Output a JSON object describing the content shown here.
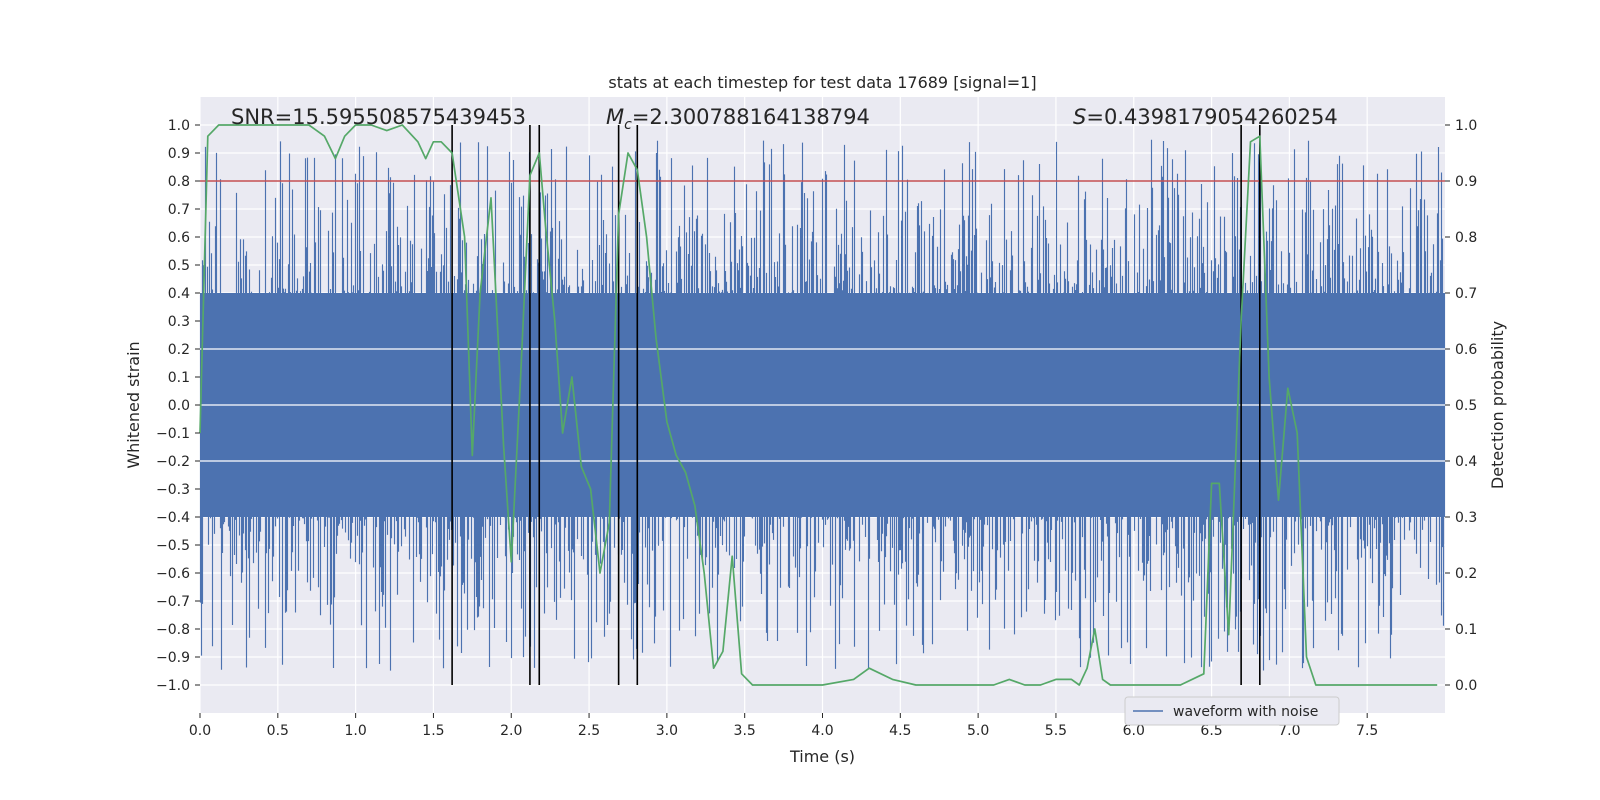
{
  "chart_data": {
    "type": "line",
    "title": "stats at each timestep for test data 17689 [signal=1]",
    "xlabel": "Time (s)",
    "ylabel": "Whitened strain",
    "y2label": "Detection probability",
    "xlim": [
      0.0,
      8.0
    ],
    "ylim": [
      -1.1,
      1.1
    ],
    "y2lim": [
      -0.05,
      1.05
    ],
    "xticks": [
      0.0,
      0.5,
      1.0,
      1.5,
      2.0,
      2.5,
      3.0,
      3.5,
      4.0,
      4.5,
      5.0,
      5.5,
      6.0,
      6.5,
      7.0,
      7.5
    ],
    "xtick_labels": [
      "0.0",
      "0.5",
      "1.0",
      "1.5",
      "2.0",
      "2.5",
      "3.0",
      "3.5",
      "4.0",
      "4.5",
      "5.0",
      "5.5",
      "6.0",
      "6.5",
      "7.0",
      "7.5"
    ],
    "yticks": [
      -1.0,
      -0.9,
      -0.8,
      -0.7,
      -0.6,
      -0.5,
      -0.4,
      -0.3,
      -0.2,
      -0.1,
      0.0,
      0.1,
      0.2,
      0.3,
      0.4,
      0.5,
      0.6,
      0.7,
      0.8,
      0.9,
      1.0
    ],
    "ytick_labels": [
      "−1.0",
      "−0.9",
      "−0.8",
      "−0.7",
      "−0.6",
      "−0.5",
      "−0.4",
      "−0.3",
      "−0.2",
      "−0.1",
      "0.0",
      "0.1",
      "0.2",
      "0.3",
      "0.4",
      "0.5",
      "0.6",
      "0.7",
      "0.8",
      "0.9",
      "1.0"
    ],
    "y2ticks": [
      0.0,
      0.1,
      0.2,
      0.3,
      0.4,
      0.5,
      0.6,
      0.7,
      0.8,
      0.9,
      1.0
    ],
    "y2tick_labels": [
      "0.0",
      "0.1",
      "0.2",
      "0.3",
      "0.4",
      "0.5",
      "0.6",
      "0.7",
      "0.8",
      "0.9",
      "1.0"
    ],
    "annotations": {
      "snr": "SNR=15.595508575439453",
      "mc_symbol": "M",
      "mc_subscript": "c",
      "mc_value": "=2.300788164138794",
      "s_symbol": "S",
      "s_value": "=0.4398179054260254"
    },
    "threshold": {
      "value": 0.9,
      "color": "#c44e52",
      "axis": "right"
    },
    "vertical_lines": [
      1.62,
      2.12,
      2.18,
      2.69,
      2.81,
      6.69,
      6.81
    ],
    "waveform": {
      "name": "waveform with noise",
      "color": "#4c72b0",
      "duration": 8.0,
      "envelope_core": 0.4,
      "peak_max": 1.0,
      "peak_min": -1.0
    },
    "probability": {
      "color": "#55a868",
      "x": [
        0.0,
        0.05,
        0.12,
        0.2,
        0.3,
        0.4,
        0.5,
        0.6,
        0.7,
        0.8,
        0.87,
        0.93,
        1.0,
        1.1,
        1.2,
        1.3,
        1.4,
        1.45,
        1.5,
        1.55,
        1.62,
        1.7,
        1.75,
        1.8,
        1.87,
        1.95,
        2.0,
        2.06,
        2.12,
        2.18,
        2.22,
        2.28,
        2.33,
        2.39,
        2.45,
        2.51,
        2.57,
        2.63,
        2.69,
        2.75,
        2.81,
        2.87,
        2.93,
        3.0,
        3.06,
        3.12,
        3.18,
        3.24,
        3.3,
        3.36,
        3.42,
        3.48,
        3.55,
        3.65,
        3.8,
        4.0,
        4.2,
        4.3,
        4.45,
        4.6,
        4.8,
        5.0,
        5.1,
        5.2,
        5.3,
        5.4,
        5.5,
        5.6,
        5.65,
        5.7,
        5.75,
        5.8,
        5.85,
        5.95,
        6.1,
        6.3,
        6.45,
        6.5,
        6.55,
        6.61,
        6.69,
        6.75,
        6.81,
        6.87,
        6.93,
        6.99,
        7.05,
        7.11,
        7.17,
        7.3,
        7.5,
        7.7,
        7.95
      ],
      "y": [
        0.45,
        0.98,
        1.0,
        1.0,
        1.0,
        1.0,
        1.0,
        1.0,
        1.0,
        0.98,
        0.94,
        0.98,
        1.0,
        1.0,
        0.99,
        1.0,
        0.97,
        0.94,
        0.97,
        0.97,
        0.95,
        0.8,
        0.41,
        0.7,
        0.87,
        0.43,
        0.22,
        0.55,
        0.91,
        0.95,
        0.82,
        0.65,
        0.45,
        0.55,
        0.39,
        0.35,
        0.2,
        0.29,
        0.84,
        0.95,
        0.92,
        0.8,
        0.62,
        0.47,
        0.41,
        0.38,
        0.32,
        0.2,
        0.03,
        0.06,
        0.23,
        0.02,
        0.0,
        0.0,
        0.0,
        0.0,
        0.01,
        0.03,
        0.01,
        0.0,
        0.0,
        0.0,
        0.0,
        0.01,
        0.0,
        0.0,
        0.01,
        0.01,
        0.0,
        0.03,
        0.1,
        0.01,
        0.0,
        0.0,
        0.0,
        0.0,
        0.02,
        0.36,
        0.36,
        0.09,
        0.65,
        0.97,
        0.98,
        0.55,
        0.33,
        0.53,
        0.45,
        0.05,
        0.0,
        0.0,
        0.0,
        0.0,
        0.0
      ]
    },
    "legend": {
      "label": "waveform with noise",
      "location": "lower-right"
    }
  }
}
